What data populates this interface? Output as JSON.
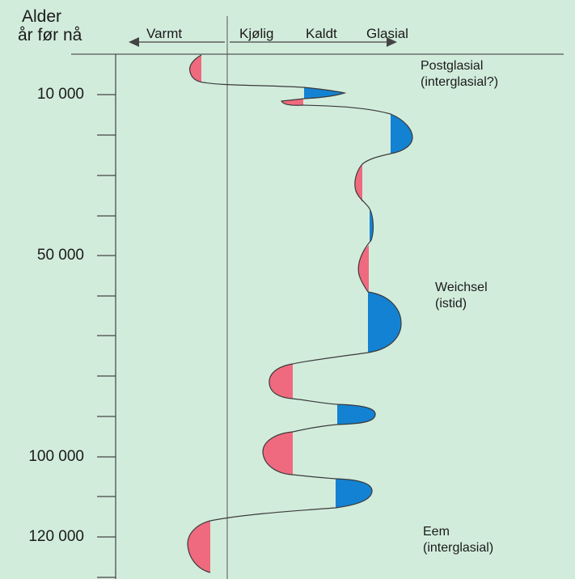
{
  "header": {
    "title_line1": "Alder",
    "title_line2": "år før nå"
  },
  "scale": {
    "warm_label": "Varmt",
    "cool_label": "Kjølig",
    "cold_label": "Kaldt",
    "glacial_label": "Glasial"
  },
  "axis": {
    "labels": [
      "10 000",
      "50 000",
      "100 000",
      "120 000"
    ]
  },
  "periods": {
    "postglacial_line1": "Postglasial",
    "postglacial_line2": "(interglasial?)",
    "weichsel_line1": "Weichsel",
    "weichsel_line2": "(istid)",
    "eem_line1": "Eem",
    "eem_line2": "(interglasial)"
  },
  "colors": {
    "background": "#d2ecdc",
    "warm": "#ef6a7e",
    "cold": "#1482d2",
    "line": "#3a3a3a"
  }
}
